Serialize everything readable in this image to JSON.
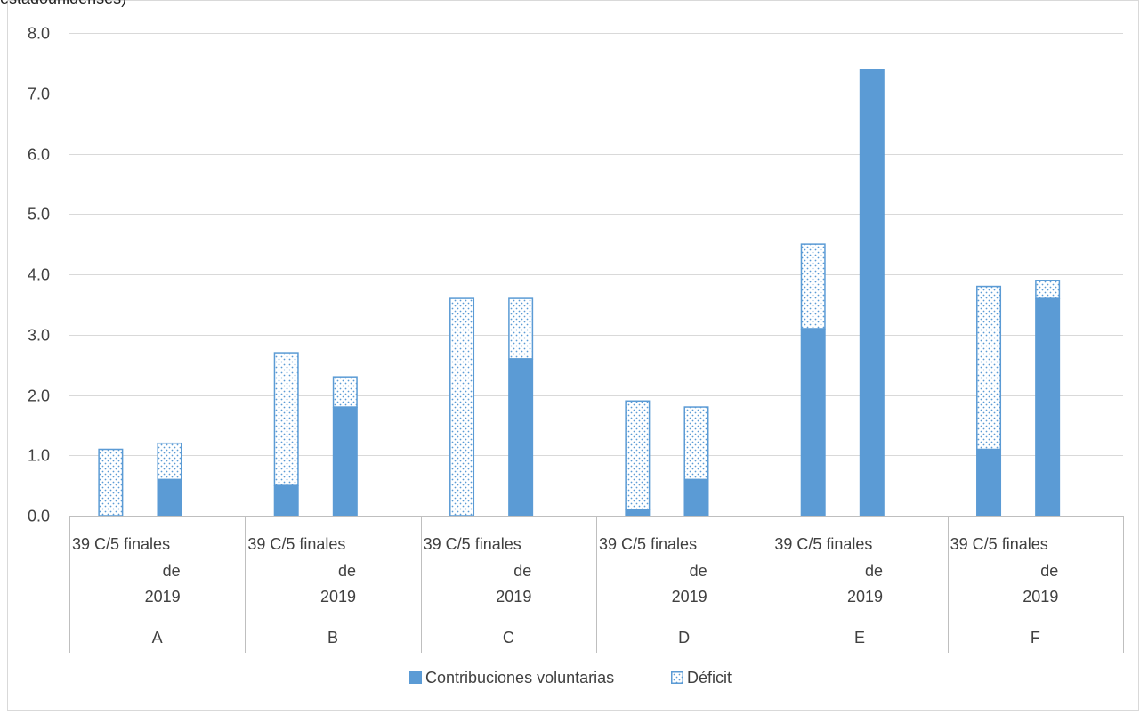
{
  "title_fragment": "estadounidenses)",
  "chart_data": {
    "type": "bar",
    "stacked": true,
    "groups": [
      "A",
      "B",
      "C",
      "D",
      "E",
      "F"
    ],
    "subcategories": [
      "39 C/5",
      "finales de 2019"
    ],
    "subcategory_label_lines": [
      "39 C/5 finales",
      "de",
      "2019"
    ],
    "series": [
      {
        "name": "Contribuciones voluntarias",
        "values": [
          [
            0.0,
            0.6
          ],
          [
            0.5,
            1.8
          ],
          [
            0.0,
            2.6
          ],
          [
            0.1,
            0.6
          ],
          [
            3.1,
            7.4
          ],
          [
            1.1,
            3.6
          ]
        ]
      },
      {
        "name": "Déficit",
        "values": [
          [
            1.1,
            0.6
          ],
          [
            2.2,
            0.5
          ],
          [
            3.6,
            1.0
          ],
          [
            1.8,
            1.2
          ],
          [
            1.4,
            0.0
          ],
          [
            2.7,
            0.3
          ]
        ]
      }
    ],
    "ylim": [
      0,
      8
    ],
    "yticks": [
      "0.0",
      "1.0",
      "2.0",
      "3.0",
      "4.0",
      "5.0",
      "6.0",
      "7.0",
      "8.0"
    ],
    "grid": true,
    "legend": "bottom",
    "colors": {
      "solid": "#5b9bd5",
      "hatch": "#5b9bd5",
      "grid": "#d9d9d9",
      "axis": "#bfbfbf"
    }
  }
}
